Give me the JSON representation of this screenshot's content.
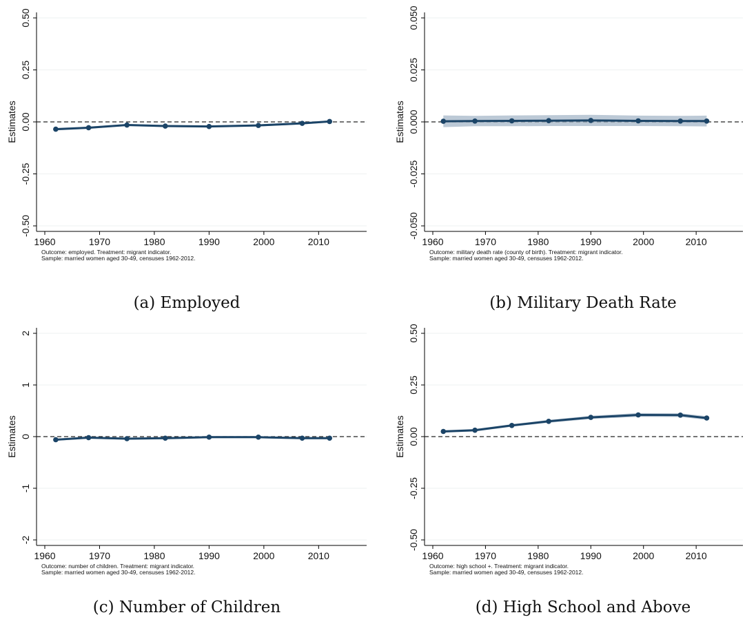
{
  "chart_data": [
    {
      "type": "line",
      "caption": "(a) Employed",
      "ylabel": "Estimates",
      "xlim": [
        1960,
        2016
      ],
      "ylim": [
        -0.5,
        0.5
      ],
      "xticks": [
        "1960",
        "1970",
        "1980",
        "1990",
        "2000",
        "2010"
      ],
      "yticks": [
        "-0.50",
        "-0.25",
        "0.00",
        "0.25",
        "0.50"
      ],
      "grid": true,
      "reference_line": 0,
      "note_lines": [
        "Outcome: employed. Treatment: migrant indicator.",
        "Sample: married women aged 30-49, censuses 1962-2012."
      ],
      "x": [
        1962,
        1968,
        1975,
        1982,
        1990,
        1999,
        2007,
        2012
      ],
      "y": [
        -0.035,
        -0.028,
        -0.015,
        -0.02,
        -0.022,
        -0.017,
        -0.007,
        0.002
      ],
      "ci_halfwidth": [
        0.006,
        0.005,
        0.005,
        0.005,
        0.005,
        0.005,
        0.005,
        0.005
      ]
    },
    {
      "type": "line",
      "caption": "(b) Military Death Rate",
      "ylabel": "Estimates",
      "xlim": [
        1960,
        2016
      ],
      "ylim": [
        -0.05,
        0.05
      ],
      "xticks": [
        "1960",
        "1970",
        "1980",
        "1990",
        "2000",
        "2010"
      ],
      "yticks": [
        "-0.050",
        "-0.025",
        "0.000",
        "0.025",
        "0.050"
      ],
      "grid": true,
      "reference_line": 0,
      "note_lines": [
        "Outcome: military death rate (county of birth). Treatment: migrant indicator.",
        "Sample: married women aged 30-49, censuses 1962-2012."
      ],
      "x": [
        1962,
        1968,
        1975,
        1982,
        1990,
        1999,
        2007,
        2012
      ],
      "y": [
        0.0003,
        0.0004,
        0.0005,
        0.0006,
        0.0007,
        0.0005,
        0.0004,
        0.0004
      ],
      "ci_halfwidth": [
        0.0028,
        0.0025,
        0.0026,
        0.0026,
        0.0027,
        0.0025,
        0.0025,
        0.0026
      ]
    },
    {
      "type": "line",
      "caption": "(c) Number of Children",
      "ylabel": "Estimates",
      "xlim": [
        1960,
        2016
      ],
      "ylim": [
        -2,
        2
      ],
      "xticks": [
        "1960",
        "1970",
        "1980",
        "1990",
        "2000",
        "2010"
      ],
      "yticks": [
        "-2",
        "-1",
        "0",
        "1",
        "2"
      ],
      "grid": true,
      "reference_line": 0,
      "note_lines": [
        "Outcome: number of children. Treatment: migrant indicator.",
        "Sample: married women aged 30-49, censuses 1962-2012."
      ],
      "x": [
        1962,
        1968,
        1975,
        1982,
        1990,
        1999,
        2007,
        2012
      ],
      "y": [
        -0.06,
        -0.02,
        -0.04,
        -0.03,
        -0.01,
        -0.01,
        -0.03,
        -0.03
      ],
      "ci_halfwidth": [
        0.02,
        0.02,
        0.02,
        0.02,
        0.02,
        0.02,
        0.02,
        0.02
      ]
    },
    {
      "type": "line",
      "caption": "(d) High School and Above",
      "ylabel": "Estimates",
      "xlim": [
        1960,
        2016
      ],
      "ylim": [
        -0.5,
        0.5
      ],
      "xticks": [
        "1960",
        "1970",
        "1980",
        "1990",
        "2000",
        "2010"
      ],
      "yticks": [
        "-0.50",
        "-0.25",
        "0.00",
        "0.25",
        "0.50"
      ],
      "grid": true,
      "reference_line": 0,
      "note_lines": [
        "Outcome: high school +. Treatment: migrant indicator.",
        "Sample: married women aged 30-49, censuses 1962-2012."
      ],
      "x": [
        1962,
        1968,
        1975,
        1982,
        1990,
        1999,
        2007,
        2012
      ],
      "y": [
        0.025,
        0.031,
        0.054,
        0.074,
        0.093,
        0.105,
        0.104,
        0.09
      ],
      "ci_halfwidth": [
        0.006,
        0.006,
        0.006,
        0.007,
        0.008,
        0.009,
        0.009,
        0.009
      ]
    }
  ],
  "colors": {
    "line": "#1b4467",
    "band": "#9fb2c4",
    "grid": "#eef0f1",
    "reference": "#222222",
    "axis": "#000000"
  }
}
